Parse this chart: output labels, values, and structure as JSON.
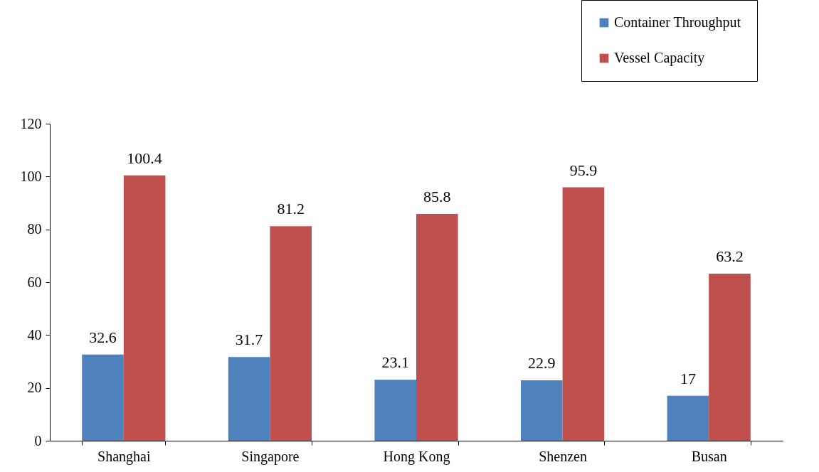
{
  "chart_data": {
    "type": "bar",
    "categories": [
      "Shanghai",
      "Singapore",
      "Hong Kong",
      "Shenzen",
      "Busan"
    ],
    "series": [
      {
        "name": "Container Throughput",
        "color": "#4f81bd",
        "values": [
          32.6,
          31.7,
          23.1,
          22.9,
          17
        ]
      },
      {
        "name": "Vessel Capacity",
        "color": "#c0504d",
        "values": [
          100.4,
          81.2,
          85.8,
          95.9,
          63.2
        ]
      }
    ],
    "ylim": [
      0,
      120
    ],
    "yticks": [
      0,
      20,
      40,
      60,
      80,
      100,
      120
    ],
    "grid": false,
    "legend": "top right",
    "data_labels": true
  }
}
